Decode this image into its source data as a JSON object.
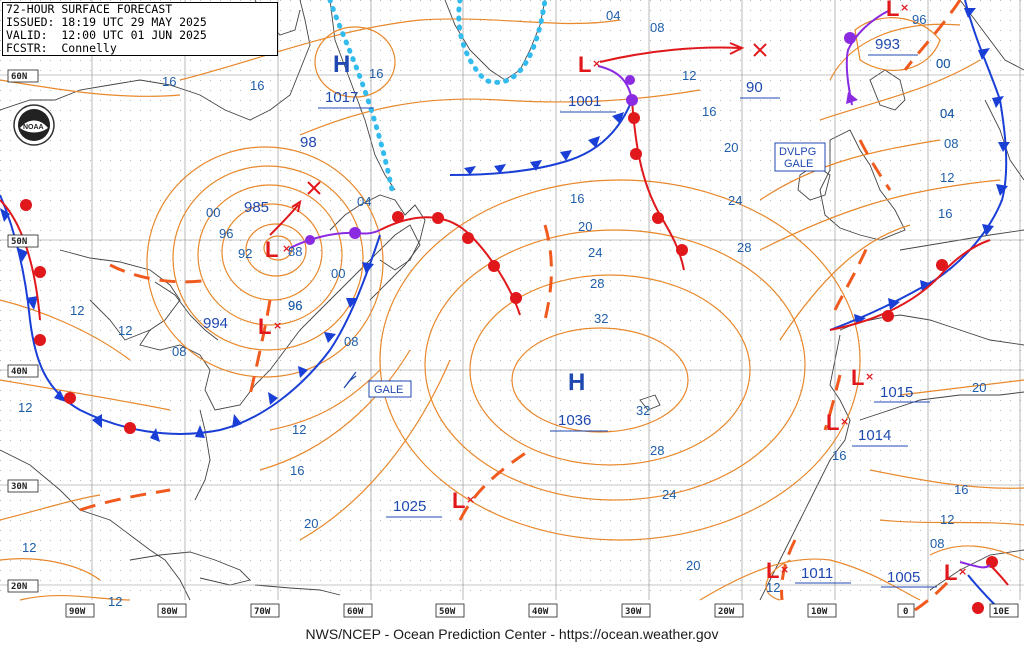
{
  "header": {
    "line1": "72-HOUR SURFACE FORECAST",
    "line2": "ISSUED: 18:19 UTC 29 MAY 2025",
    "line3": "VALID:  12:00 UTC 01 JUN 2025",
    "line4": "FCSTR:  Connelly"
  },
  "footer": {
    "credit": "NWS/NCEP - Ocean Prediction Center - https://ocean.weather.gov"
  },
  "logo": {
    "text": "NOAA"
  },
  "lat_labels": [
    "60N",
    "50N",
    "40N",
    "30N",
    "20N"
  ],
  "lon_labels": [
    "90W",
    "80W",
    "70W",
    "60W",
    "50W",
    "40W",
    "30W",
    "20W",
    "10W",
    "0",
    "10E"
  ],
  "highs": [
    {
      "symbol": "H",
      "pressure": "1017"
    },
    {
      "symbol": "H",
      "pressure": "1036"
    }
  ],
  "lows": [
    {
      "symbol": "L",
      "pressure": "985"
    },
    {
      "symbol": "L",
      "pressure": "994"
    },
    {
      "symbol": "L",
      "pressure": "1001"
    },
    {
      "symbol": "L",
      "pressure": "993"
    },
    {
      "symbol": "L",
      "pressure": "1015"
    },
    {
      "symbol": "L",
      "pressure": "1014"
    },
    {
      "symbol": "L",
      "pressure": "1025"
    },
    {
      "symbol": "L",
      "pressure": "1011"
    },
    {
      "symbol": "L",
      "pressure": "1005"
    }
  ],
  "other_labels": {
    "p90": "90",
    "p98": "98"
  },
  "warnings": {
    "gale": "GALE",
    "dvlpg1": "DVLPG",
    "dvlpg2": "GALE"
  },
  "isobar_labels": [
    "16",
    "16",
    "16",
    "12",
    "12",
    "12",
    "12",
    "12",
    "08",
    "08",
    "08",
    "04",
    "04",
    "00",
    "00",
    "96",
    "96",
    "96",
    "92",
    "88",
    "00",
    "04",
    "16",
    "20",
    "24",
    "28",
    "32",
    "32",
    "28",
    "24",
    "20",
    "16",
    "12",
    "20",
    "24",
    "28",
    "16",
    "12",
    "16",
    "00",
    "04",
    "08",
    "12",
    "16",
    "20",
    "12",
    "08",
    "20",
    "12",
    "16",
    "96"
  ],
  "colors": {
    "isobar": "#e8882c",
    "cold_front": "#1a3fd6",
    "warm_front": "#e0181c",
    "occluded_front": "#8a2be2",
    "ice_edge": "#33bbee",
    "trough": "#f05a1e",
    "label_blue": "#1f49b0",
    "grid": "#7f7f7f"
  }
}
